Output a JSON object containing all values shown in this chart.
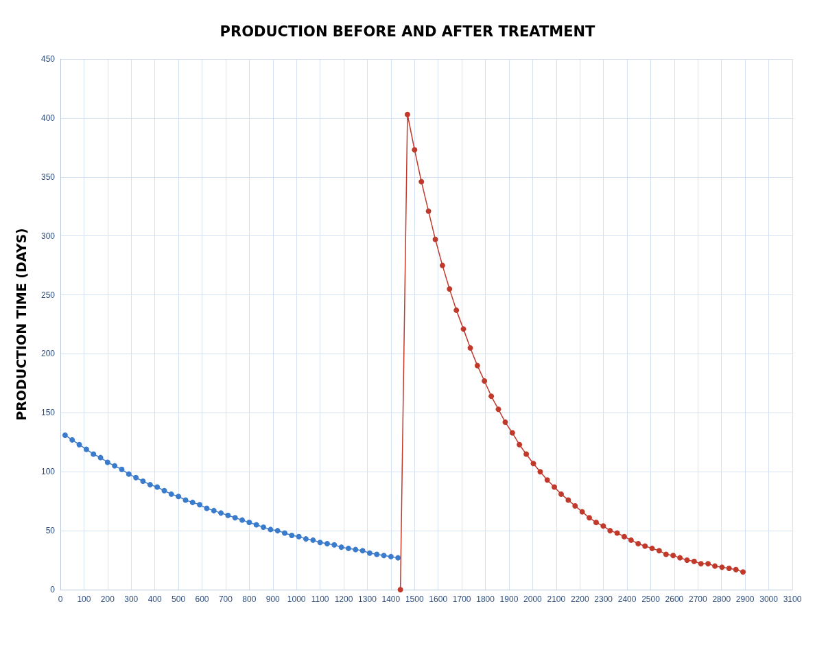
{
  "chart_data": {
    "type": "line",
    "title": "PRODUCTION BEFORE AND AFTER TREATMENT",
    "ylabel": "PRODUCTION TIME (DAYS)",
    "xlim": [
      0,
      3100
    ],
    "xticks": [
      0,
      100,
      200,
      300,
      400,
      500,
      600,
      700,
      800,
      900,
      1000,
      1100,
      1200,
      1300,
      1400,
      1500,
      1600,
      1700,
      1800,
      1900,
      2000,
      2100,
      2200,
      2300,
      2400,
      2500,
      2600,
      2700,
      2800,
      2900,
      3000,
      3100
    ],
    "ylim": [
      0,
      450
    ],
    "yticks": [
      0,
      50,
      100,
      150,
      200,
      250,
      300,
      350,
      400,
      450
    ],
    "grid": true,
    "marker": "circle",
    "line_style": "solid",
    "series": [
      {
        "color": "#3b7bcc",
        "x": [
          20,
          50,
          80,
          110,
          140,
          170,
          200,
          230,
          260,
          290,
          320,
          350,
          380,
          410,
          440,
          470,
          500,
          530,
          560,
          590,
          620,
          650,
          680,
          710,
          740,
          770,
          800,
          830,
          860,
          890,
          920,
          950,
          980,
          1010,
          1040,
          1070,
          1100,
          1130,
          1160,
          1190,
          1220,
          1250,
          1280,
          1310,
          1340,
          1370,
          1400,
          1430
        ],
        "values": [
          131,
          127,
          123,
          119,
          115,
          112,
          108,
          105,
          102,
          98,
          95,
          92,
          89,
          87,
          84,
          81,
          79,
          76,
          74,
          72,
          69,
          67,
          65,
          63,
          61,
          59,
          57,
          55,
          53,
          51,
          50,
          48,
          46,
          45,
          43,
          42,
          40,
          39,
          38,
          36,
          35,
          34,
          33,
          31,
          30,
          29,
          28,
          27
        ]
      },
      {
        "color": "#c0392b",
        "x": [
          1440,
          1470,
          1500,
          1529,
          1559,
          1588,
          1618,
          1648,
          1677,
          1707,
          1736,
          1766,
          1796,
          1825,
          1855,
          1884,
          1914,
          1944,
          1973,
          2003,
          2032,
          2062,
          2092,
          2121,
          2151,
          2180,
          2210,
          2240,
          2269,
          2299,
          2328,
          2358,
          2388,
          2417,
          2447,
          2476,
          2506,
          2536,
          2565,
          2595,
          2624,
          2654,
          2684,
          2713,
          2743,
          2772,
          2802,
          2832,
          2861,
          2891
        ],
        "values": [
          0,
          403,
          373,
          346,
          321,
          297,
          275,
          255,
          237,
          221,
          205,
          190,
          177,
          164,
          153,
          142,
          133,
          123,
          115,
          107,
          100,
          93,
          87,
          81,
          76,
          71,
          66,
          61,
          57,
          54,
          50,
          48,
          45,
          42,
          39,
          37,
          35,
          33,
          30,
          29,
          27,
          25,
          24,
          22,
          22,
          20,
          19,
          18,
          17,
          15
        ]
      }
    ]
  }
}
